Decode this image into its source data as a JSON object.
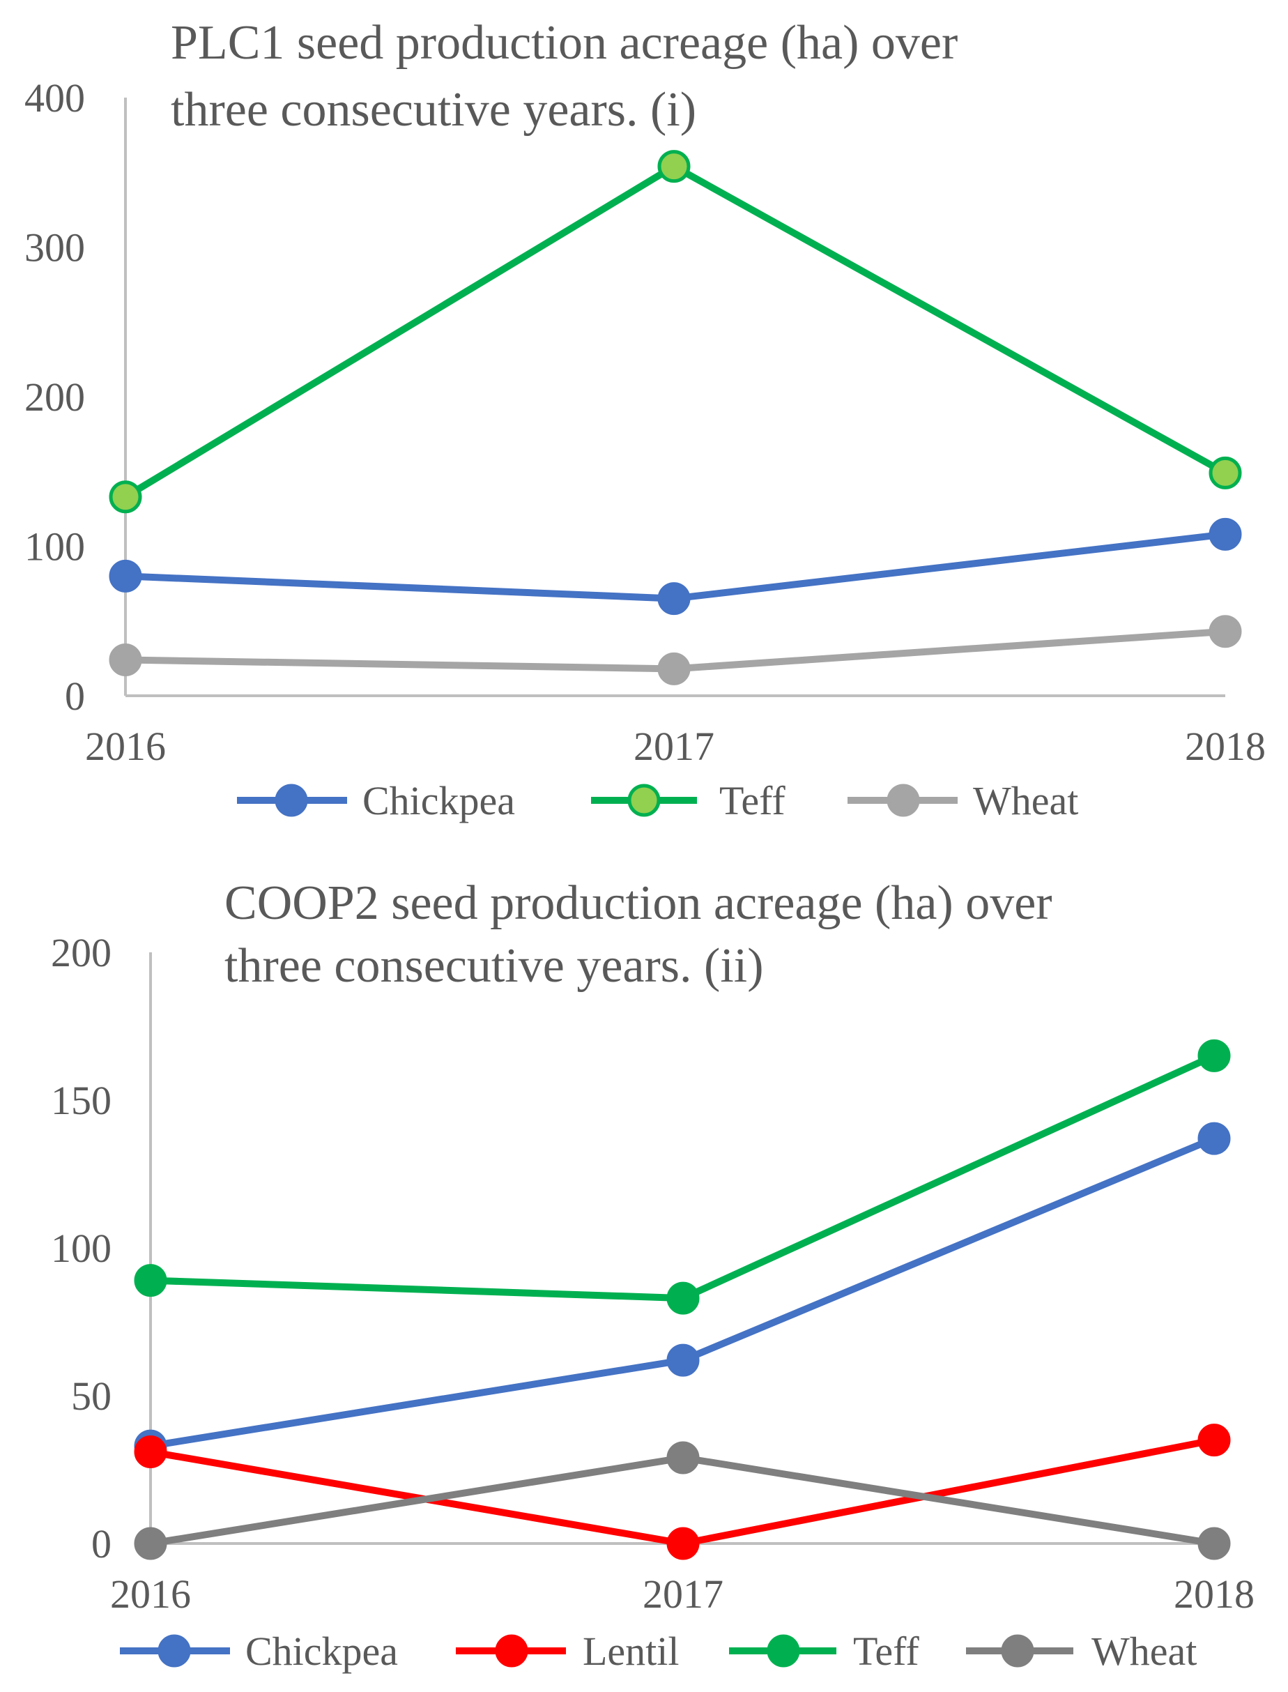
{
  "chart_data": [
    {
      "type": "line",
      "title_lines": [
        "PLC1 seed production acreage (ha) over",
        "three consecutive years. (i)"
      ],
      "xlabel": "",
      "ylabel": "",
      "categories": [
        "2016",
        "2017",
        "2018"
      ],
      "ylim": [
        0,
        400
      ],
      "yticks": [
        0,
        100,
        200,
        300,
        400
      ],
      "ytick_labels": [
        "0",
        "100",
        "200",
        "300",
        "400"
      ],
      "grid": false,
      "legend_position": "bottom",
      "series": [
        {
          "name": "Chickpea",
          "values": [
            80,
            65,
            108
          ],
          "color": "#4472C4",
          "marker_fill": "#4472C4"
        },
        {
          "name": "Teff",
          "values": [
            133,
            354,
            149
          ],
          "color": "#00B050",
          "marker_fill": "#92D050"
        },
        {
          "name": "Wheat",
          "values": [
            24,
            18,
            43
          ],
          "color": "#A5A5A5",
          "marker_fill": "#A5A5A5"
        }
      ]
    },
    {
      "type": "line",
      "title_lines": [
        "COOP2 seed production acreage (ha) over",
        "three consecutive years. (ii)"
      ],
      "xlabel": "",
      "ylabel": "",
      "categories": [
        "2016",
        "2017",
        "2018"
      ],
      "ylim": [
        0,
        200
      ],
      "yticks": [
        0,
        50,
        100,
        150,
        200
      ],
      "ytick_labels": [
        "0",
        "50",
        "100",
        "150",
        "200"
      ],
      "grid": false,
      "legend_position": "bottom",
      "series": [
        {
          "name": "Chickpea",
          "values": [
            33,
            62,
            137
          ],
          "color": "#4472C4",
          "marker_fill": "#4472C4"
        },
        {
          "name": "Lentil",
          "values": [
            31,
            0,
            35
          ],
          "color": "#FF0000",
          "marker_fill": "#FF0000"
        },
        {
          "name": "Teff",
          "values": [
            89,
            83,
            165
          ],
          "color": "#00B050",
          "marker_fill": "#00B050"
        },
        {
          "name": "Wheat",
          "values": [
            0,
            29,
            0
          ],
          "color": "#7F7F7F",
          "marker_fill": "#7F7F7F"
        }
      ]
    }
  ]
}
